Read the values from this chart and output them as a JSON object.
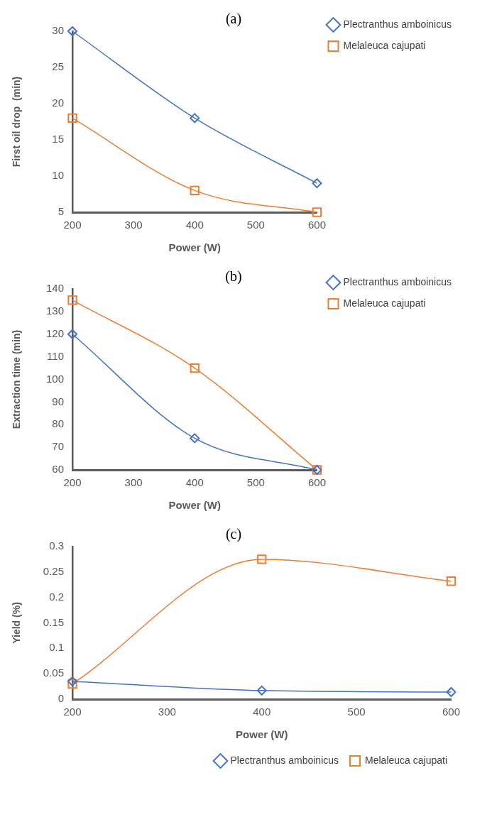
{
  "chart_data": [
    {
      "type": "line",
      "title": "(a)",
      "xlabel": "Power (W)",
      "ylabel": "First oil drop  (min)",
      "x": [
        200,
        400,
        600
      ],
      "xlim": [
        200,
        600
      ],
      "xticks": [
        200,
        300,
        400,
        500,
        600
      ],
      "ylim": [
        5,
        30
      ],
      "yticks": [
        5,
        10,
        15,
        20,
        25,
        30
      ],
      "grid": false,
      "legend": "top right",
      "series": [
        {
          "name": "Plectranthus amboinicus",
          "color": "#4472c4",
          "marker": "diamond",
          "values": [
            30,
            18,
            9
          ]
        },
        {
          "name": "Melaleuca cajupati",
          "color": "#ed7d31",
          "marker": "square",
          "values": [
            18,
            8,
            5
          ]
        }
      ]
    },
    {
      "type": "line",
      "title": "(b)",
      "xlabel": "Power (W)",
      "ylabel": "Extraction time (min)",
      "x": [
        200,
        400,
        600
      ],
      "xlim": [
        200,
        600
      ],
      "xticks": [
        200,
        300,
        400,
        500,
        600
      ],
      "ylim": [
        60,
        140
      ],
      "yticks": [
        60,
        70,
        80,
        90,
        100,
        110,
        120,
        130,
        140
      ],
      "grid": false,
      "legend": "top right",
      "series": [
        {
          "name": "Plectranthus amboinicus",
          "color": "#4472c4",
          "marker": "diamond",
          "values": [
            120,
            74,
            60
          ]
        },
        {
          "name": "Melaleuca cajupati",
          "color": "#ed7d31",
          "marker": "square",
          "values": [
            135,
            105,
            60
          ]
        }
      ]
    },
    {
      "type": "line",
      "title": "(c)",
      "xlabel": "Power (W)",
      "ylabel": "Yield (%)",
      "x": [
        200,
        400,
        600
      ],
      "xlim": [
        200,
        600
      ],
      "xticks": [
        200,
        300,
        400,
        500,
        600
      ],
      "ylim": [
        0,
        0.3
      ],
      "yticks": [
        0,
        0.05,
        0.1,
        0.15,
        0.2,
        0.25,
        0.3
      ],
      "grid": false,
      "legend": "bottom right",
      "series": [
        {
          "name": "Plectranthus amboinicus",
          "color": "#4472c4",
          "marker": "diamond",
          "values": [
            0.035,
            0.017,
            0.014
          ]
        },
        {
          "name": "Melaleuca cajupati",
          "color": "#ed7d31",
          "marker": "square",
          "values": [
            0.03,
            0.275,
            0.232
          ]
        }
      ]
    }
  ]
}
